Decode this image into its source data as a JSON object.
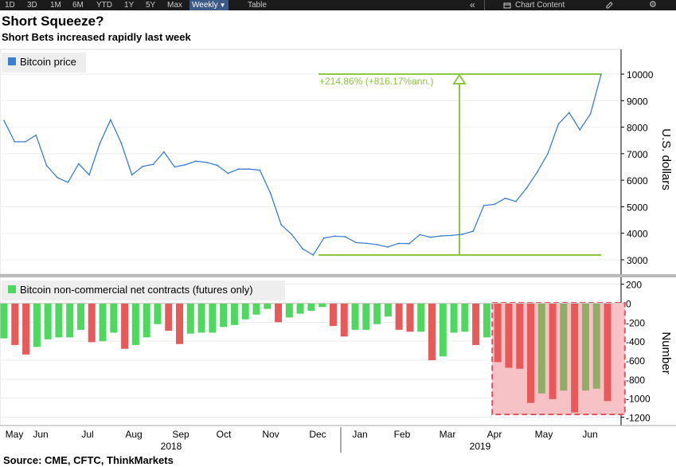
{
  "toolbar": {
    "periods": [
      "1D",
      "3D",
      "1M",
      "6M",
      "YTD",
      "1Y",
      "5Y",
      "Max"
    ],
    "frequency": "Weekly",
    "table_label": "Table",
    "collapse_icon": "double-chevron-left-icon",
    "chart_content_label": "Chart Content",
    "edit_icon": "pencil-icon",
    "settings_icon": "gear-icon"
  },
  "header": {
    "title": "Short Squeeze?",
    "subtitle": "Short Bets increased rapidly last week"
  },
  "footer": {
    "source": "Source: CME, CFTC, ThinkMarkets"
  },
  "colors": {
    "price_line": "#3a7fd0",
    "positive_bar": "#4fd860",
    "negative_bar": "#e85a5a",
    "highlight_bar": "#8fae65",
    "annotation": "#8dc63f",
    "highlight_fill": "#f7c2c6",
    "highlight_border": "#e0555f"
  },
  "chart_data": [
    {
      "type": "line",
      "legend": [
        "Bitcoin price"
      ],
      "ylabel": "U.S. dollars",
      "ylim": [
        2600,
        10900
      ],
      "yticks": [
        3000,
        4000,
        5000,
        6000,
        7000,
        8000,
        9000,
        10000
      ],
      "grid": true,
      "legend_position": "top-left",
      "annotation": {
        "text": "+214.86% (+816.17%ann.)",
        "from": 3180,
        "to": 10000
      },
      "series": [
        {
          "name": "Bitcoin price",
          "values": [
            8250,
            7450,
            7450,
            7700,
            6550,
            6100,
            5920,
            6620,
            6200,
            7400,
            8280,
            7400,
            6200,
            6520,
            6600,
            7070,
            6500,
            6580,
            6720,
            6670,
            6560,
            6260,
            6420,
            6420,
            6380,
            5500,
            4320,
            3950,
            3420,
            3180,
            3820,
            3890,
            3870,
            3650,
            3620,
            3570,
            3480,
            3620,
            3610,
            3950,
            3850,
            3900,
            3920,
            3960,
            4080,
            5050,
            5090,
            5320,
            5200,
            5700,
            6300,
            7000,
            8120,
            8550,
            7900,
            8500,
            10000
          ]
        }
      ]
    },
    {
      "type": "bar",
      "legend": [
        "Bitcoin non-commercial net contracts (futures only)"
      ],
      "ylabel": "Number",
      "ylim": [
        -1265,
        260
      ],
      "yticks": [
        -1200,
        -1000,
        -800,
        -600,
        -400,
        -200,
        0,
        200
      ],
      "grid": true,
      "legend_position": "top-left",
      "highlight_range": [
        45,
        56
      ],
      "series": [
        {
          "name": "Bitcoin non-commercial net contracts (futures only)",
          "values": [
            -370,
            -440,
            -540,
            -460,
            -380,
            -360,
            -360,
            -280,
            -410,
            -400,
            -310,
            -480,
            -440,
            -360,
            -220,
            -290,
            -430,
            -320,
            -310,
            -310,
            -250,
            -230,
            -170,
            -120,
            -60,
            -200,
            -150,
            -110,
            -80,
            -40,
            -240,
            -350,
            -280,
            -280,
            -220,
            -140,
            -280,
            -300,
            -300,
            -600,
            -560,
            -310,
            -300,
            -440,
            -360,
            -620,
            -680,
            -690,
            -1050,
            -950,
            -1010,
            -920,
            -1150,
            -920,
            -900,
            -1030
          ]
        }
      ]
    }
  ],
  "x_axis": {
    "months": [
      "May",
      "Jun",
      "Jul",
      "Aug",
      "Sep",
      "Oct",
      "Nov",
      "Dec",
      "Jan",
      "Feb",
      "Mar",
      "Apr",
      "May",
      "Jun"
    ],
    "years": [
      "2018",
      "2019"
    ]
  }
}
